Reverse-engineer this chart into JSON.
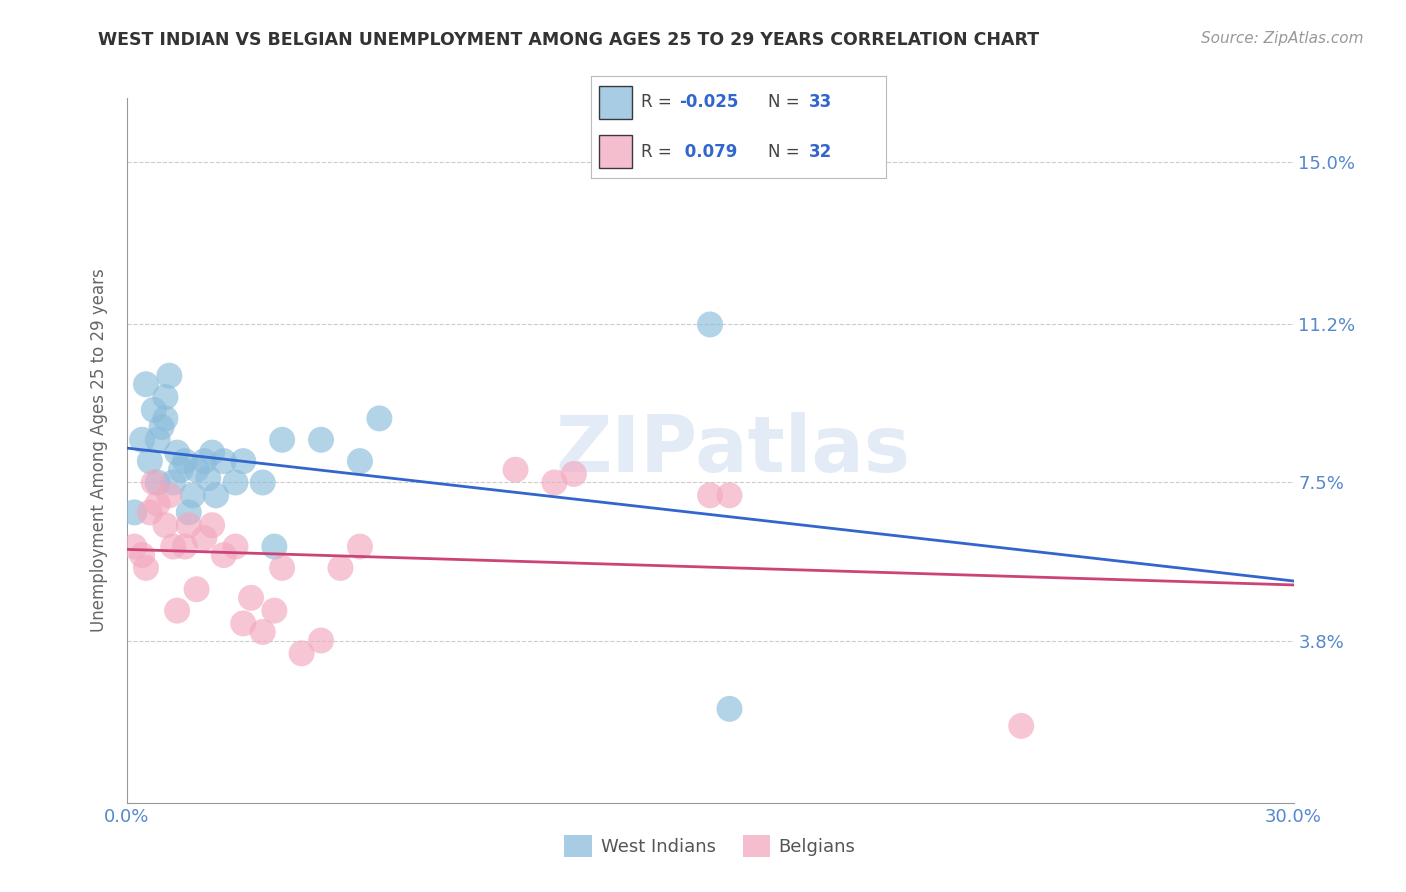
{
  "title": "WEST INDIAN VS BELGIAN UNEMPLOYMENT AMONG AGES 25 TO 29 YEARS CORRELATION CHART",
  "source": "Source: ZipAtlas.com",
  "ylabel": "Unemployment Among Ages 25 to 29 years",
  "xlim": [
    0.0,
    0.3
  ],
  "ylim": [
    0.0,
    0.165
  ],
  "ytick_positions": [
    0.038,
    0.075,
    0.112,
    0.15
  ],
  "ytick_labels": [
    "3.8%",
    "7.5%",
    "11.2%",
    "15.0%"
  ],
  "west_indian_color": "#8bbcdb",
  "belgian_color": "#f2a8bf",
  "trend_west_color": "#3366cc",
  "trend_belgian_color": "#cc4477",
  "background_color": "#ffffff",
  "grid_color": "#cccccc",
  "wi_R": "-0.025",
  "wi_N": "33",
  "be_R": "0.079",
  "be_N": "32",
  "west_indians_x": [
    0.002,
    0.004,
    0.005,
    0.006,
    0.007,
    0.008,
    0.008,
    0.009,
    0.01,
    0.01,
    0.011,
    0.012,
    0.013,
    0.014,
    0.015,
    0.016,
    0.017,
    0.018,
    0.02,
    0.021,
    0.022,
    0.023,
    0.025,
    0.028,
    0.03,
    0.035,
    0.038,
    0.04,
    0.05,
    0.06,
    0.065,
    0.15,
    0.155
  ],
  "west_indians_y": [
    0.068,
    0.085,
    0.098,
    0.08,
    0.092,
    0.075,
    0.085,
    0.088,
    0.09,
    0.095,
    0.1,
    0.075,
    0.082,
    0.078,
    0.08,
    0.068,
    0.072,
    0.078,
    0.08,
    0.076,
    0.082,
    0.072,
    0.08,
    0.075,
    0.08,
    0.075,
    0.06,
    0.085,
    0.085,
    0.08,
    0.09,
    0.112,
    0.022
  ],
  "belgians_x": [
    0.002,
    0.004,
    0.005,
    0.006,
    0.007,
    0.008,
    0.01,
    0.011,
    0.012,
    0.013,
    0.015,
    0.016,
    0.018,
    0.02,
    0.022,
    0.025,
    0.028,
    0.03,
    0.032,
    0.035,
    0.038,
    0.04,
    0.045,
    0.05,
    0.055,
    0.06,
    0.1,
    0.11,
    0.115,
    0.15,
    0.155,
    0.23
  ],
  "belgians_y": [
    0.06,
    0.058,
    0.055,
    0.068,
    0.075,
    0.07,
    0.065,
    0.072,
    0.06,
    0.045,
    0.06,
    0.065,
    0.05,
    0.062,
    0.065,
    0.058,
    0.06,
    0.042,
    0.048,
    0.04,
    0.045,
    0.055,
    0.035,
    0.038,
    0.055,
    0.06,
    0.078,
    0.075,
    0.077,
    0.072,
    0.072,
    0.018
  ]
}
